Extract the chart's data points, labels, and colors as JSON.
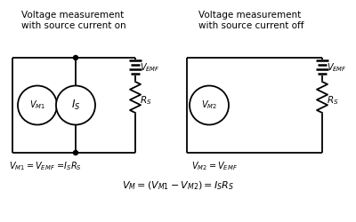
{
  "bg_color": "#ffffff",
  "title1": "Voltage measurement\nwith source current on",
  "title2": "Voltage measurement\nwith source current off",
  "formula1": "$V_{M1} = V_{EMF}$ =$I_SR_S$",
  "formula2": "$V_{M2} = V_{EMF}$",
  "formula_bottom": "$V_M = (V_{M1} - V_{M2}) = I_SR_S$",
  "figsize": [
    4.0,
    2.5
  ],
  "dpi": 100,
  "lw": 1.3
}
